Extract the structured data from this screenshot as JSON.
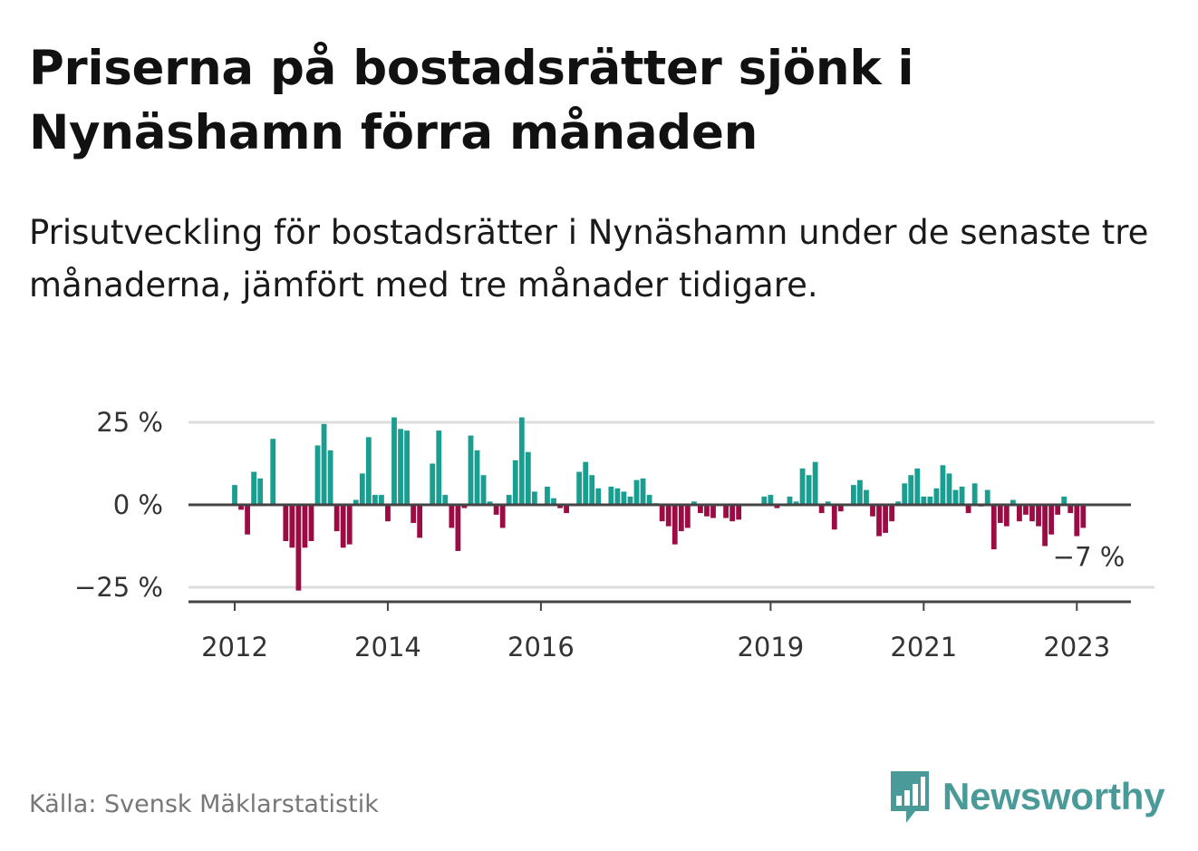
{
  "title": "Priserna på bostadsrätter sjönk i Nynäshamn förra månaden",
  "subtitle": "Prisutveckling för bostadsrätter i Nynäshamn under de senaste tre månaderna, jämfört med tre månader tidigare.",
  "source": "Källa: Svensk Mäklarstatistik",
  "brand": {
    "name": "Newsworthy",
    "icon": "bar-chart-speech-bubble-icon",
    "color": "#4a9a99"
  },
  "colors": {
    "positive": "#1a9e91",
    "negative": "#9c0c44",
    "grid": "#dddddd",
    "axis": "#444444"
  },
  "chart_data": {
    "type": "bar",
    "y_unit": "percent",
    "ylim": [
      -30,
      25
    ],
    "y_ticks": [
      {
        "value": 25,
        "label": "25 %"
      },
      {
        "value": 0,
        "label": "0 %"
      },
      {
        "value": -25,
        "label": "−25 %"
      }
    ],
    "x_ticks": [
      {
        "value": 2012,
        "label": "2012"
      },
      {
        "value": 2014,
        "label": "2014"
      },
      {
        "value": 2016,
        "label": "2016"
      },
      {
        "value": 2019,
        "label": "2019"
      },
      {
        "value": 2021,
        "label": "2021"
      },
      {
        "value": 2023,
        "label": "2023"
      }
    ],
    "grid": true,
    "start_month": "2012-01",
    "end_month": "2023-02",
    "values": [
      6,
      -1.5,
      -9,
      10,
      8,
      0,
      20,
      0,
      -11,
      -13,
      -26,
      -13,
      -11,
      18,
      24.5,
      16.5,
      -8,
      -13,
      -12,
      1.5,
      9.5,
      20.5,
      3,
      3,
      -5,
      26.5,
      23,
      22.5,
      -5.5,
      -10,
      0,
      12.5,
      22.5,
      3,
      -7,
      -14,
      -1,
      21,
      16.5,
      9,
      1,
      -3,
      -7,
      3,
      13.5,
      26.5,
      16,
      4,
      0,
      5.5,
      2,
      -1,
      -2.5,
      0,
      10,
      13,
      9,
      5,
      0,
      5.5,
      5,
      4,
      2.5,
      7.5,
      8,
      3,
      0.5,
      -5,
      -6.5,
      -12,
      -8,
      -7,
      1,
      -2.5,
      -3.5,
      -4,
      0,
      -4,
      -5,
      -4.5,
      0,
      0,
      0,
      2.5,
      3,
      -1,
      0,
      2.5,
      1,
      11,
      9,
      13,
      -2.5,
      1,
      -7.5,
      -2,
      0,
      6,
      7.5,
      4.5,
      -3.5,
      -9.5,
      -8.5,
      -5,
      1,
      6.5,
      9,
      11,
      2.5,
      2.5,
      5,
      12,
      9.5,
      4.5,
      5.5,
      -2.5,
      6.5,
      -0.5,
      4.5,
      -13.5,
      -5.5,
      -6.5,
      1.5,
      -5,
      -3,
      -5,
      -6.5,
      -12.5,
      -9,
      -3,
      2.5,
      -2.5,
      -9.5,
      -7
    ],
    "annotation": {
      "month": "2023-02",
      "text": "−7 %"
    }
  }
}
